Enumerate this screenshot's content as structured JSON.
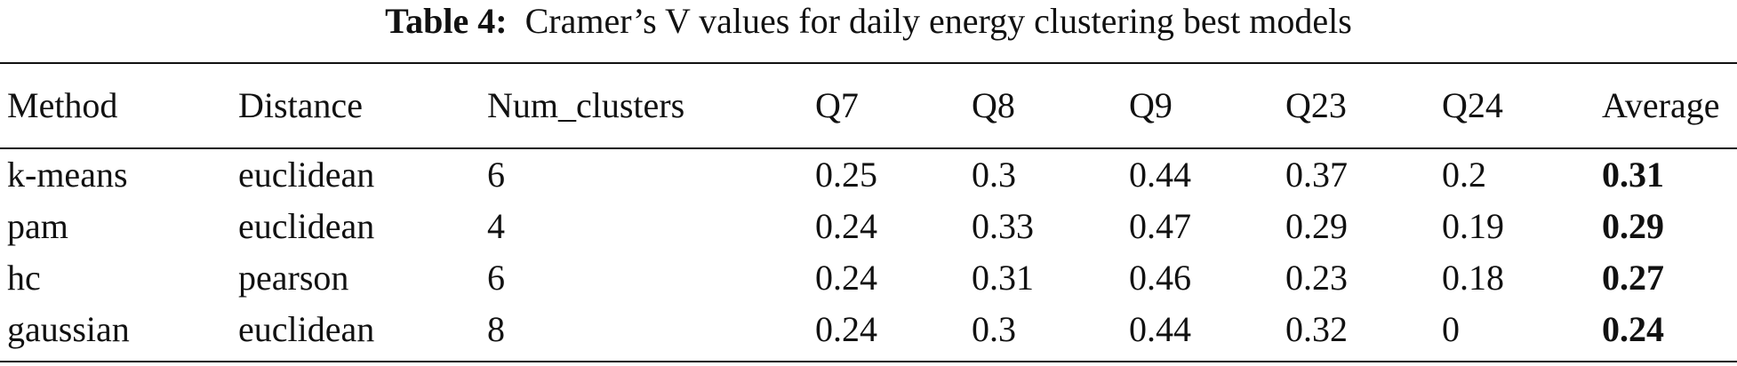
{
  "caption": {
    "label": "Table 4:",
    "text": "Cramer’s V values for daily energy clustering best models"
  },
  "table": {
    "columns": [
      "Method",
      "Distance",
      "Num_clusters",
      "Q7",
      "Q8",
      "Q9",
      "Q23",
      "Q24",
      "Average"
    ],
    "rows": [
      [
        "k-means",
        "euclidean",
        "6",
        "0.25",
        "0.3",
        "0.44",
        "0.37",
        "0.2",
        "0.31"
      ],
      [
        "pam",
        "euclidean",
        "4",
        "0.24",
        "0.33",
        "0.47",
        "0.29",
        "0.19",
        "0.29"
      ],
      [
        "hc",
        "pearson",
        "6",
        "0.24",
        "0.31",
        "0.46",
        "0.23",
        "0.18",
        "0.27"
      ],
      [
        "gaussian",
        "euclidean",
        "8",
        "0.24",
        "0.3",
        "0.44",
        "0.32",
        "0",
        "0.24"
      ]
    ]
  }
}
